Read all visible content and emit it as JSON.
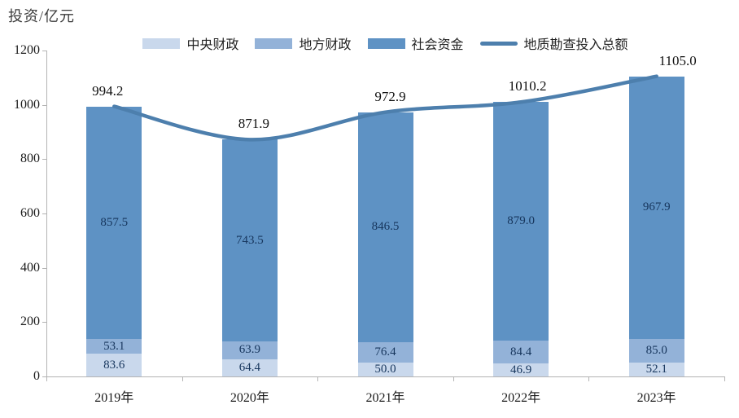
{
  "title": "投资/亿元",
  "legend": [
    {
      "label": "中央财政",
      "type": "box",
      "color": "#c9d8ec"
    },
    {
      "label": "地方财政",
      "type": "box",
      "color": "#93b2d8"
    },
    {
      "label": "社会资金",
      "type": "box",
      "color": "#5e92c4"
    },
    {
      "label": "地质勘查投入总额",
      "type": "line",
      "color": "#4d7fad"
    }
  ],
  "chart_data": {
    "type": "bar",
    "stacked": true,
    "title": "投资/亿元",
    "categories": [
      "2019年",
      "2020年",
      "2021年",
      "2022年",
      "2023年"
    ],
    "series": [
      {
        "name": "中央财政",
        "type": "bar",
        "color": "#c9d8ec",
        "values": [
          83.6,
          64.4,
          50.0,
          46.9,
          52.1
        ]
      },
      {
        "name": "地方财政",
        "type": "bar",
        "color": "#93b2d8",
        "values": [
          53.1,
          63.9,
          76.4,
          84.4,
          85.0
        ]
      },
      {
        "name": "社会资金",
        "type": "bar",
        "color": "#5e92c4",
        "values": [
          857.5,
          743.5,
          846.5,
          879.0,
          967.9
        ]
      },
      {
        "name": "地质勘查投入总额",
        "type": "line",
        "color": "#4d7fad",
        "values": [
          994.2,
          871.9,
          972.9,
          1010.2,
          1105.0
        ]
      }
    ],
    "ylabel": "投资/亿元",
    "xlabel": "",
    "ylim": [
      0,
      1200
    ],
    "yticks": [
      0,
      200,
      400,
      600,
      800,
      1000,
      1200
    ],
    "grid": false,
    "legend_position": "top",
    "value_label_color": "#17365d",
    "total_label_color": "#111111",
    "axis_color": "#b3b3b3"
  }
}
